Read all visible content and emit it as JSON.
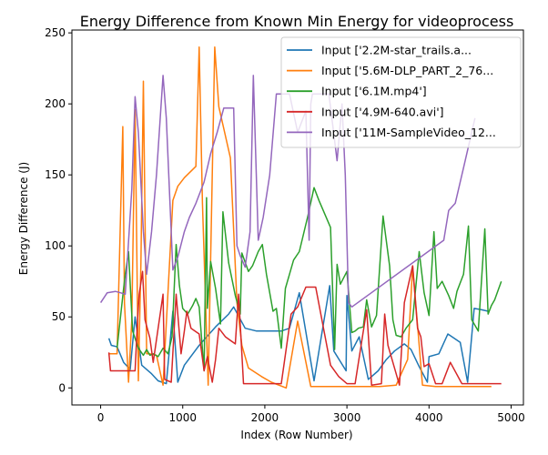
{
  "chart_data": {
    "type": "line",
    "title": "Energy Difference from Known Min Energy for videoprocess",
    "xlabel": "Index (Row Number)",
    "ylabel": "Energy Difference (J)",
    "xlim": [
      -350,
      5150
    ],
    "ylim": [
      -12,
      252
    ],
    "xticks": [
      0,
      1000,
      2000,
      3000,
      4000,
      5000
    ],
    "yticks": [
      0,
      50,
      100,
      150,
      200,
      250
    ],
    "grid": false,
    "legend_position": "top-right",
    "series": [
      {
        "name": "Input ['2.2M-star_trails.a...",
        "color": "#1f77b4",
        "x": [
          100,
          130,
          200,
          280,
          360,
          420,
          500,
          620,
          700,
          800,
          880,
          940,
          1020,
          1200,
          1400,
          1560,
          1620,
          1760,
          1900,
          2200,
          2300,
          2420,
          2600,
          2790,
          2840,
          2990,
          3000,
          3060,
          3150,
          3260,
          3380,
          3480,
          3580,
          3700,
          3780,
          3880,
          3980,
          4000,
          4120,
          4230,
          4380,
          4470,
          4550,
          4640,
          4720
        ],
        "y": [
          35,
          30,
          29,
          18,
          13,
          50,
          16,
          10,
          5,
          3,
          54,
          4,
          16,
          30,
          43,
          52,
          57,
          42,
          40,
          40,
          42,
          67,
          5,
          72,
          26,
          12,
          65,
          26,
          36,
          6,
          12,
          20,
          26,
          31,
          27,
          15,
          4,
          22,
          24,
          38,
          32,
          4,
          56,
          55,
          54
        ]
      },
      {
        "name": "Input ['5.6M-DLP_PART_2_76...",
        "color": "#ff7f0e",
        "x": [
          100,
          200,
          270,
          290,
          340,
          380,
          420,
          460,
          490,
          520,
          560,
          600,
          680,
          760,
          880,
          940,
          1020,
          1160,
          1200,
          1240,
          1310,
          1390,
          1440,
          1580,
          1660,
          1720,
          1800,
          1960,
          2080,
          2260,
          2400,
          2560,
          2800,
          3200,
          3400,
          3600,
          3740,
          3800,
          3920,
          4080,
          4300,
          4500,
          4760
        ],
        "y": [
          24,
          24,
          184,
          60,
          4,
          48,
          196,
          5,
          88,
          216,
          24,
          24,
          23,
          2,
          132,
          142,
          148,
          156,
          240,
          130,
          2,
          240,
          198,
          162,
          60,
          30,
          14,
          8,
          4,
          0,
          47,
          1,
          1,
          1,
          1,
          2,
          20,
          86,
          2,
          1,
          1,
          1,
          1
        ]
      },
      {
        "name": "Input ['6.1M.mp4']",
        "color": "#2ca02c",
        "x": [
          200,
          280,
          300,
          340,
          390,
          460,
          520,
          560,
          600,
          640,
          700,
          760,
          820,
          870,
          920,
          960,
          1000,
          1060,
          1120,
          1160,
          1200,
          1260,
          1290,
          1300,
          1340,
          1400,
          1460,
          1490,
          1560,
          1640,
          1700,
          1720,
          1800,
          1850,
          1920,
          1970,
          2020,
          2100,
          2140,
          2200,
          2250,
          2300,
          2350,
          2420,
          2520,
          2600,
          2660,
          2800,
          2850,
          2880,
          2920,
          3000,
          3060,
          3100,
          3140,
          3200,
          3240,
          3300,
          3360,
          3440,
          3520,
          3560,
          3600,
          3660,
          3720,
          3800,
          3880,
          3940,
          4000,
          4060,
          4100,
          4160,
          4240,
          4300,
          4340,
          4420,
          4480,
          4520,
          4600,
          4680,
          4720,
          4760,
          4800,
          4880
        ],
        "y": [
          28,
          70,
          80,
          96,
          40,
          28,
          23,
          27,
          23,
          24,
          22,
          28,
          24,
          36,
          101,
          72,
          56,
          52,
          58,
          63,
          57,
          12,
          134,
          56,
          89,
          70,
          45,
          124,
          88,
          65,
          52,
          95,
          82,
          86,
          96,
          101,
          80,
          54,
          56,
          28,
          70,
          80,
          90,
          96,
          120,
          141,
          132,
          113,
          27,
          87,
          73,
          82,
          39,
          40,
          42,
          43,
          62,
          43,
          51,
          121,
          86,
          48,
          37,
          36,
          42,
          48,
          96,
          67,
          51,
          110,
          70,
          75,
          65,
          56,
          68,
          80,
          114,
          48,
          40,
          112,
          52,
          58,
          62,
          75
        ]
      },
      {
        "name": "Input ['4.9M-640.avi']",
        "color": "#d62728",
        "x": [
          100,
          120,
          200,
          300,
          420,
          450,
          470,
          510,
          540,
          600,
          640,
          760,
          780,
          860,
          920,
          980,
          1020,
          1050,
          1100,
          1200,
          1260,
          1300,
          1360,
          1400,
          1440,
          1520,
          1640,
          1680,
          1740,
          1800,
          2000,
          2200,
          2320,
          2400,
          2500,
          2560,
          2620,
          2800,
          2900,
          3000,
          3100,
          3240,
          3300,
          3420,
          3460,
          3500,
          3640,
          3700,
          3800,
          3860,
          3900,
          3940,
          4000,
          4080,
          4160,
          4260,
          4400,
          4480,
          4600,
          4720,
          4780,
          4880
        ],
        "y": [
          25,
          12,
          12,
          12,
          12,
          48,
          66,
          82,
          48,
          35,
          18,
          66,
          6,
          4,
          66,
          24,
          40,
          54,
          42,
          38,
          12,
          22,
          4,
          20,
          42,
          36,
          31,
          66,
          3,
          3,
          3,
          3,
          52,
          57,
          71,
          71,
          71,
          16,
          8,
          3,
          3,
          55,
          2,
          3,
          52,
          30,
          2,
          60,
          86,
          42,
          36,
          15,
          17,
          3,
          3,
          18,
          3,
          3,
          3,
          3,
          3,
          3
        ]
      },
      {
        "name": "Input ['11M-SampleVideo_12...",
        "color": "#9467bd",
        "x": [
          0,
          80,
          180,
          240,
          300,
          380,
          420,
          460,
          520,
          560,
          620,
          680,
          760,
          800,
          880,
          940,
          1020,
          1080,
          1160,
          1260,
          1340,
          1420,
          1500,
          1560,
          1620,
          1660,
          1700,
          1760,
          1820,
          1860,
          1920,
          1980,
          2060,
          2140,
          2200,
          2300,
          2400,
          2500,
          2540,
          2560,
          2580,
          2640,
          2700,
          2780,
          2880,
          2940,
          2980,
          3020,
          3060,
          4180,
          4240,
          4320,
          4420,
          4560
        ],
        "y": [
          60,
          67,
          68,
          67,
          66,
          140,
          205,
          180,
          110,
          80,
          110,
          150,
          220,
          190,
          83,
          92,
          110,
          120,
          130,
          145,
          165,
          180,
          197,
          197,
          197,
          100,
          93,
          85,
          110,
          220,
          104,
          120,
          150,
          207,
          207,
          207,
          180,
          195,
          104,
          200,
          207,
          207,
          207,
          207,
          160,
          200,
          150,
          60,
          57,
          104,
          125,
          130,
          155,
          190
        ]
      }
    ]
  }
}
